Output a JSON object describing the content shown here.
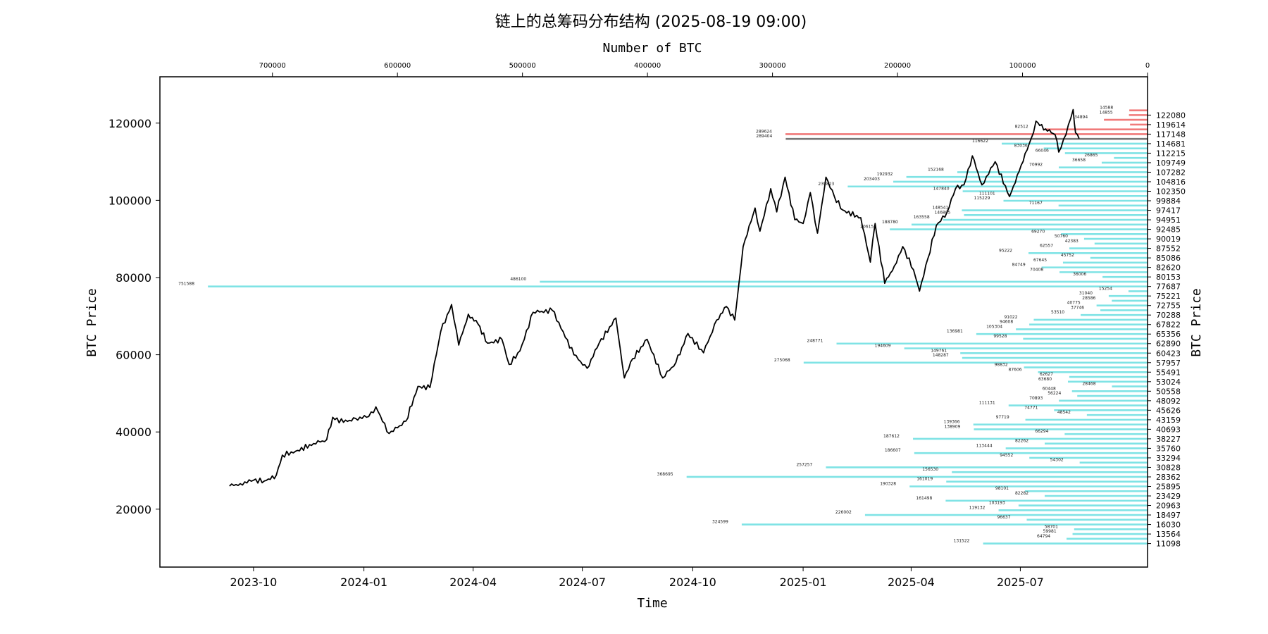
{
  "chart_data": {
    "type": "line",
    "title": "链上的总筹码分布结构 (2025-08-19 09:00)",
    "xlabel": "Time",
    "ylabel": "BTC Price",
    "ylabel_right": "BTC Price",
    "xlabel_top": "Number of BTC",
    "ylim": [
      5000,
      132000
    ],
    "xlim": [
      "2023-07-15",
      "2025-10-15"
    ],
    "xlim_top": [
      790000,
      0
    ],
    "x_ticks": [
      "2023-10",
      "2024-01",
      "2024-04",
      "2024-07",
      "2024-10",
      "2025-01",
      "2025-04",
      "2025-07"
    ],
    "y_ticks": [
      "20000",
      "40000",
      "60000",
      "80000",
      "100000",
      "120000"
    ],
    "top_ticks": [
      "700000",
      "600000",
      "500000",
      "400000",
      "300000",
      "200000",
      "100000",
      "0"
    ],
    "price_series": {
      "name": "",
      "points": [
        [
          "2023-09-11",
          26000
        ],
        [
          "2023-09-20",
          26600
        ],
        [
          "2023-10-01",
          27500
        ],
        [
          "2023-10-10",
          27300
        ],
        [
          "2023-10-20",
          28800
        ],
        [
          "2023-10-25",
          34000
        ],
        [
          "2023-11-05",
          35000
        ],
        [
          "2023-11-20",
          37000
        ],
        [
          "2023-12-01",
          38000
        ],
        [
          "2023-12-06",
          43800
        ],
        [
          "2023-12-15",
          42500
        ],
        [
          "2023-12-25",
          43500
        ],
        [
          "2024-01-05",
          44000
        ],
        [
          "2024-01-11",
          46500
        ],
        [
          "2024-01-22",
          39600
        ],
        [
          "2024-02-05",
          42800
        ],
        [
          "2024-02-15",
          51800
        ],
        [
          "2024-02-25",
          51500
        ],
        [
          "2024-03-05",
          66000
        ],
        [
          "2024-03-14",
          73000
        ],
        [
          "2024-03-20",
          62500
        ],
        [
          "2024-03-28",
          70500
        ],
        [
          "2024-04-05",
          68000
        ],
        [
          "2024-04-13",
          63000
        ],
        [
          "2024-04-25",
          64000
        ],
        [
          "2024-05-01",
          57500
        ],
        [
          "2024-05-10",
          61000
        ],
        [
          "2024-05-21",
          71000
        ],
        [
          "2024-06-06",
          71500
        ],
        [
          "2024-06-15",
          66000
        ],
        [
          "2024-06-24",
          60000
        ],
        [
          "2024-07-05",
          56500
        ],
        [
          "2024-07-15",
          63000
        ],
        [
          "2024-07-29",
          69500
        ],
        [
          "2024-08-05",
          54000
        ],
        [
          "2024-08-12",
          59000
        ],
        [
          "2024-08-24",
          64000
        ],
        [
          "2024-09-06",
          54000
        ],
        [
          "2024-09-17",
          58000
        ],
        [
          "2024-09-27",
          65500
        ],
        [
          "2024-10-10",
          60500
        ],
        [
          "2024-10-21",
          69000
        ],
        [
          "2024-10-29",
          72500
        ],
        [
          "2024-11-05",
          69000
        ],
        [
          "2024-11-12",
          88000
        ],
        [
          "2024-11-22",
          98000
        ],
        [
          "2024-11-26",
          92000
        ],
        [
          "2024-12-05",
          103000
        ],
        [
          "2024-12-10",
          97000
        ],
        [
          "2024-12-17",
          106000
        ],
        [
          "2024-12-25",
          95000
        ],
        [
          "2025-01-01",
          94000
        ],
        [
          "2025-01-07",
          102000
        ],
        [
          "2025-01-13",
          91500
        ],
        [
          "2025-01-20",
          106000
        ],
        [
          "2025-01-27",
          101000
        ],
        [
          "2025-02-03",
          97500
        ],
        [
          "2025-02-18",
          95500
        ],
        [
          "2025-02-26",
          84000
        ],
        [
          "2025-03-02",
          94000
        ],
        [
          "2025-03-10",
          78500
        ],
        [
          "2025-03-18",
          83000
        ],
        [
          "2025-03-25",
          88000
        ],
        [
          "2025-04-03",
          82000
        ],
        [
          "2025-04-08",
          76500
        ],
        [
          "2025-04-15",
          85000
        ],
        [
          "2025-04-22",
          93500
        ],
        [
          "2025-05-01",
          97000
        ],
        [
          "2025-05-08",
          103000
        ],
        [
          "2025-05-15",
          104000
        ],
        [
          "2025-05-22",
          111500
        ],
        [
          "2025-05-30",
          104000
        ],
        [
          "2025-06-10",
          110000
        ],
        [
          "2025-06-22",
          101000
        ],
        [
          "2025-06-30",
          107500
        ],
        [
          "2025-07-10",
          116000
        ],
        [
          "2025-07-14",
          120500
        ],
        [
          "2025-07-22",
          118500
        ],
        [
          "2025-07-30",
          117000
        ],
        [
          "2025-08-02",
          112500
        ],
        [
          "2025-08-08",
          117000
        ],
        [
          "2025-08-14",
          123500
        ],
        [
          "2025-08-16",
          117500
        ],
        [
          "2025-08-19",
          116000
        ]
      ]
    },
    "distribution_levels": [
      "122080",
      "119614",
      "117148",
      "114681",
      "112215",
      "109749",
      "107282",
      "104816",
      "102350",
      "99884",
      "97417",
      "94951",
      "92485",
      "90019",
      "87552",
      "85086",
      "82620",
      "80153",
      "77687",
      "75221",
      "72755",
      "70288",
      "67822",
      "65356",
      "62890",
      "60423",
      "57957",
      "55491",
      "53024",
      "50558",
      "48092",
      "45626",
      "43159",
      "40693",
      "38227",
      "35760",
      "33294",
      "30828",
      "28362",
      "25895",
      "23429",
      "20963",
      "18497",
      "16030",
      "13564",
      "11098"
    ],
    "distribution_bars": [
      {
        "price": 123300,
        "btc": 14588,
        "label": "14588",
        "color": "red"
      },
      {
        "price": 122080,
        "btc": 14855,
        "label": "14855",
        "color": "red"
      },
      {
        "price": 120850,
        "btc": 34894,
        "label": "34894",
        "color": "red"
      },
      {
        "price": 119614,
        "btc": 14000,
        "label": "",
        "color": "red"
      },
      {
        "price": 118380,
        "btc": 82512,
        "label": "82512",
        "color": "red"
      },
      {
        "price": 117148,
        "btc": 289624,
        "label": "289624",
        "color": "red"
      },
      {
        "price": 115915,
        "btc": 289404,
        "label": "289404",
        "color": "gray"
      },
      {
        "price": 114681,
        "btc": 116622,
        "label": "116622",
        "color": "cyan"
      },
      {
        "price": 113450,
        "btc": 83036,
        "label": "83036",
        "color": "cyan"
      },
      {
        "price": 112215,
        "btc": 66046,
        "label": "66046",
        "color": "cyan"
      },
      {
        "price": 110980,
        "btc": 26865,
        "label": "26865",
        "color": "cyan"
      },
      {
        "price": 109749,
        "btc": 36658,
        "label": "36658",
        "color": "cyan"
      },
      {
        "price": 108515,
        "btc": 70992,
        "label": "70992",
        "color": "cyan"
      },
      {
        "price": 107282,
        "btc": 152168,
        "label": "152168",
        "color": "cyan"
      },
      {
        "price": 106050,
        "btc": 192932,
        "label": "192932",
        "color": "cyan"
      },
      {
        "price": 104816,
        "btc": 203403,
        "label": "203403",
        "color": "cyan"
      },
      {
        "price": 103580,
        "btc": 239823,
        "label": "239823",
        "color": "cyan"
      },
      {
        "price": 102350,
        "btc": 147840,
        "label": "147840",
        "color": "cyan"
      },
      {
        "price": 101115,
        "btc": 111101,
        "label": "111101",
        "color": "cyan"
      },
      {
        "price": 99884,
        "btc": 115229,
        "label": "115229",
        "color": "cyan"
      },
      {
        "price": 98650,
        "btc": 71167,
        "label": "71167",
        "color": "cyan"
      },
      {
        "price": 97417,
        "btc": 148541,
        "label": "148541",
        "color": "cyan"
      },
      {
        "price": 96185,
        "btc": 146805,
        "label": "146805",
        "color": "cyan"
      },
      {
        "price": 94951,
        "btc": 163558,
        "label": "163558",
        "color": "cyan"
      },
      {
        "price": 93720,
        "btc": 188780,
        "label": "188780",
        "color": "cyan"
      },
      {
        "price": 92485,
        "btc": 206155,
        "label": "206155",
        "color": "cyan"
      },
      {
        "price": 91250,
        "btc": 69270,
        "label": "69270",
        "color": "cyan"
      },
      {
        "price": 90019,
        "btc": 50760,
        "label": "50760",
        "color": "cyan"
      },
      {
        "price": 88785,
        "btc": 42383,
        "label": "42383",
        "color": "cyan"
      },
      {
        "price": 87552,
        "btc": 62557,
        "label": "62557",
        "color": "cyan"
      },
      {
        "price": 86320,
        "btc": 95222,
        "label": "95222",
        "color": "cyan"
      },
      {
        "price": 85086,
        "btc": 45752,
        "label": "45752",
        "color": "cyan"
      },
      {
        "price": 83855,
        "btc": 67645,
        "label": "67645",
        "color": "cyan"
      },
      {
        "price": 82620,
        "btc": 84749,
        "label": "84749",
        "color": "cyan"
      },
      {
        "price": 81385,
        "btc": 70408,
        "label": "70408",
        "color": "cyan"
      },
      {
        "price": 80153,
        "btc": 36006,
        "label": "36006",
        "color": "cyan"
      },
      {
        "price": 78920,
        "btc": 486100,
        "label": "486100",
        "color": "cyan"
      },
      {
        "price": 77687,
        "btc": 751588,
        "label": "751588",
        "color": "cyan"
      },
      {
        "price": 76455,
        "btc": 15254,
        "label": "15254",
        "color": "cyan"
      },
      {
        "price": 75221,
        "btc": 31040,
        "label": "31040",
        "color": "cyan"
      },
      {
        "price": 73990,
        "btc": 28586,
        "label": "28586",
        "color": "cyan"
      },
      {
        "price": 72755,
        "btc": 40775,
        "label": "40775",
        "color": "cyan"
      },
      {
        "price": 71520,
        "btc": 37746,
        "label": "37746",
        "color": "cyan"
      },
      {
        "price": 70288,
        "btc": 53510,
        "label": "53510",
        "color": "cyan"
      },
      {
        "price": 69055,
        "btc": 91022,
        "label": "91022",
        "color": "cyan"
      },
      {
        "price": 67822,
        "btc": 94608,
        "label": "94608",
        "color": "cyan"
      },
      {
        "price": 66590,
        "btc": 105304,
        "label": "105304",
        "color": "cyan"
      },
      {
        "price": 65356,
        "btc": 136981,
        "label": "136981",
        "color": "cyan"
      },
      {
        "price": 64123,
        "btc": 99528,
        "label": "99528",
        "color": "cyan"
      },
      {
        "price": 62890,
        "btc": 248771,
        "label": "248771",
        "color": "cyan"
      },
      {
        "price": 61656,
        "btc": 194609,
        "label": "194609",
        "color": "cyan"
      },
      {
        "price": 60423,
        "btc": 149761,
        "label": "149761",
        "color": "cyan"
      },
      {
        "price": 59190,
        "btc": 148287,
        "label": "148287",
        "color": "cyan"
      },
      {
        "price": 57957,
        "btc": 275068,
        "label": "275068",
        "color": "cyan"
      },
      {
        "price": 56724,
        "btc": 98832,
        "label": "98832",
        "color": "cyan"
      },
      {
        "price": 55491,
        "btc": 87606,
        "label": "87606",
        "color": "cyan"
      },
      {
        "price": 54258,
        "btc": 62627,
        "label": "62627",
        "color": "cyan"
      },
      {
        "price": 53024,
        "btc": 63680,
        "label": "63680",
        "color": "cyan"
      },
      {
        "price": 51790,
        "btc": 28468,
        "label": "28468",
        "color": "cyan"
      },
      {
        "price": 50558,
        "btc": 60448,
        "label": "60448",
        "color": "cyan"
      },
      {
        "price": 49325,
        "btc": 56224,
        "label": "56224",
        "color": "cyan"
      },
      {
        "price": 48092,
        "btc": 70893,
        "label": "70893",
        "color": "cyan"
      },
      {
        "price": 46859,
        "btc": 111131,
        "label": "111131",
        "color": "cyan"
      },
      {
        "price": 45626,
        "btc": 74771,
        "label": "74771",
        "color": "cyan"
      },
      {
        "price": 44392,
        "btc": 48542,
        "label": "48542",
        "color": "cyan"
      },
      {
        "price": 43159,
        "btc": 97719,
        "label": "97719",
        "color": "cyan"
      },
      {
        "price": 41926,
        "btc": 139366,
        "label": "139366",
        "color": "cyan"
      },
      {
        "price": 40693,
        "btc": 138909,
        "label": "138909",
        "color": "cyan"
      },
      {
        "price": 39460,
        "btc": 66294,
        "label": "66294",
        "color": "cyan"
      },
      {
        "price": 38227,
        "btc": 187612,
        "label": "187612",
        "color": "cyan"
      },
      {
        "price": 36994,
        "btc": 82262,
        "label": "82262",
        "color": "cyan"
      },
      {
        "price": 35760,
        "btc": 113444,
        "label": "113444",
        "color": "cyan"
      },
      {
        "price": 34527,
        "btc": 186607,
        "label": "186607",
        "color": "cyan"
      },
      {
        "price": 33294,
        "btc": 94552,
        "label": "94552",
        "color": "cyan"
      },
      {
        "price": 32061,
        "btc": 54302,
        "label": "54302",
        "color": "cyan"
      },
      {
        "price": 30828,
        "btc": 257257,
        "label": "257257",
        "color": "cyan"
      },
      {
        "price": 29595,
        "btc": 156530,
        "label": "156530",
        "color": "cyan"
      },
      {
        "price": 28362,
        "btc": 368695,
        "label": "368695",
        "color": "cyan"
      },
      {
        "price": 27128,
        "btc": 161019,
        "label": "161019",
        "color": "cyan"
      },
      {
        "price": 25895,
        "btc": 190328,
        "label": "190328",
        "color": "cyan"
      },
      {
        "price": 24662,
        "btc": 98101,
        "label": "98101",
        "color": "cyan"
      },
      {
        "price": 23429,
        "btc": 82282,
        "label": "82282",
        "color": "cyan"
      },
      {
        "price": 22196,
        "btc": 161498,
        "label": "161498",
        "color": "cyan"
      },
      {
        "price": 20963,
        "btc": 103193,
        "label": "103193",
        "color": "cyan"
      },
      {
        "price": 19730,
        "btc": 119132,
        "label": "119132",
        "color": "cyan"
      },
      {
        "price": 18497,
        "btc": 226002,
        "label": "226002",
        "color": "cyan"
      },
      {
        "price": 17263,
        "btc": 96637,
        "label": "96637",
        "color": "cyan"
      },
      {
        "price": 16030,
        "btc": 324599,
        "label": "324599",
        "color": "cyan"
      },
      {
        "price": 14797,
        "btc": 58701,
        "label": "58701",
        "color": "cyan"
      },
      {
        "price": 13564,
        "btc": 59981,
        "label": "59981",
        "color": "cyan"
      },
      {
        "price": 12331,
        "btc": 64794,
        "label": "64794",
        "color": "cyan"
      },
      {
        "price": 11098,
        "btc": 131522,
        "label": "131522",
        "color": "cyan"
      }
    ],
    "colors": {
      "cyan": "#7fe3e5",
      "red": "#f07a7a",
      "gray": "#777777",
      "line": "#000000"
    },
    "grid": false,
    "legend": "none"
  }
}
